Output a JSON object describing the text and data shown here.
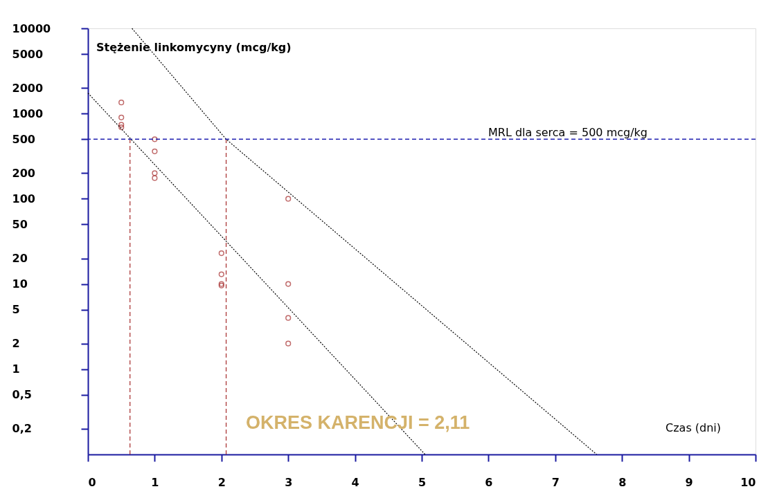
{
  "chart_data": {
    "type": "scatter",
    "ylabel": "Stężenie linkomycyny (mcg/kg)",
    "xlabel": "Czas (dni)",
    "annotations": [
      "OKRES KARENCJI = 2,11"
    ],
    "xlim": [
      0,
      10
    ],
    "xticks": [
      0,
      1,
      2,
      3,
      4,
      5,
      6,
      7,
      8,
      9,
      10
    ],
    "ylim": [
      0.1,
      10000
    ],
    "yticks": [
      10000,
      5000,
      2000,
      1000,
      500,
      200,
      100,
      50,
      20,
      10,
      5,
      2,
      1,
      {
        "value": 0.5,
        "label": "0,5"
      },
      {
        "value": 0.2,
        "label": "0,2"
      }
    ],
    "log": "y",
    "grid": false,
    "series": [
      {
        "marker": "circle",
        "color": "#a52a2a",
        "x": [
          0.5,
          0.5,
          0.5,
          0.5,
          1,
          1,
          1,
          1,
          2,
          2,
          2,
          2,
          3,
          3,
          3,
          3
        ],
        "values": [
          1350,
          900,
          740,
          690,
          500,
          360,
          200,
          175,
          23,
          13,
          10,
          9.6,
          100,
          10,
          4,
          2
        ]
      },
      {
        "type": "line",
        "marker": "none",
        "color": "#000000",
        "line_style": "dotted",
        "x": [
          0,
          5.05
        ],
        "values": [
          1740,
          0.1
        ]
      },
      {
        "type": "line",
        "marker": "none",
        "color": "#000000",
        "line_style": "dotted",
        "x": [
          0.66,
          2.07,
          7.62
        ],
        "values": [
          10000,
          500,
          0.1
        ]
      },
      {
        "type": "line",
        "marker": "none",
        "color": "#a52a2a",
        "line_style": "dashed",
        "x": [
          0.63,
          0.63
        ],
        "values": [
          0.1,
          500
        ]
      },
      {
        "type": "line",
        "marker": "none",
        "color": "#a52a2a",
        "line_style": "dashed",
        "x": [
          2.07,
          2.07
        ],
        "values": [
          0.1,
          500
        ]
      }
    ],
    "ref_lines": [
      {
        "axis": "y",
        "value": 500,
        "label": "MRL dla serca = 500 mcg/kg",
        "color": "#2020b0",
        "line_style": "dashed"
      }
    ]
  }
}
